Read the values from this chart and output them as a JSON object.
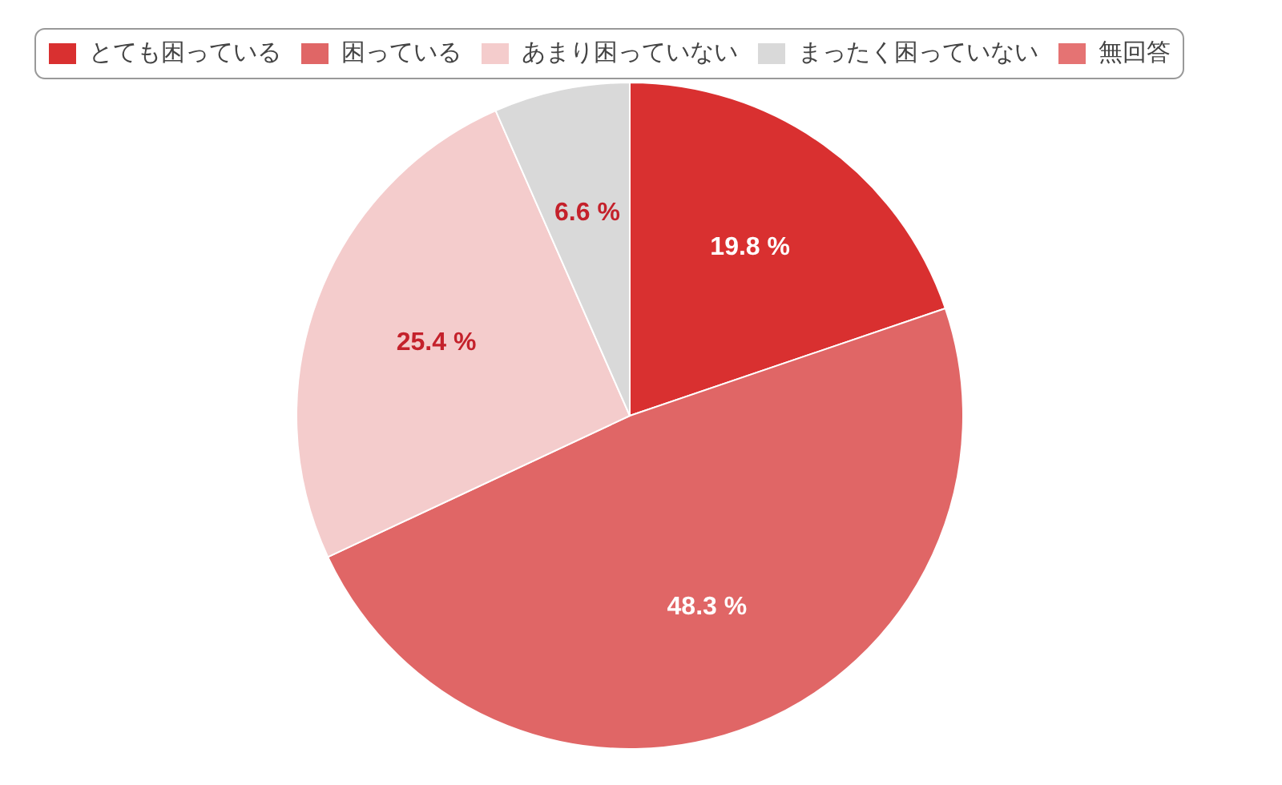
{
  "chart_data": {
    "type": "pie",
    "categories": [
      "とても困っている",
      "困っている",
      "あまり困っていない",
      "まったく困っていない",
      "無回答"
    ],
    "values": [
      19.8,
      48.3,
      25.4,
      6.6,
      0
    ],
    "colors": [
      "#d93030",
      "#e06666",
      "#f4cccc",
      "#d9d9d9",
      "#e57373"
    ],
    "value_labels": [
      "19.8 %",
      "48.3 %",
      "25.4 %",
      "6.6 %",
      null
    ],
    "legend": "top"
  }
}
